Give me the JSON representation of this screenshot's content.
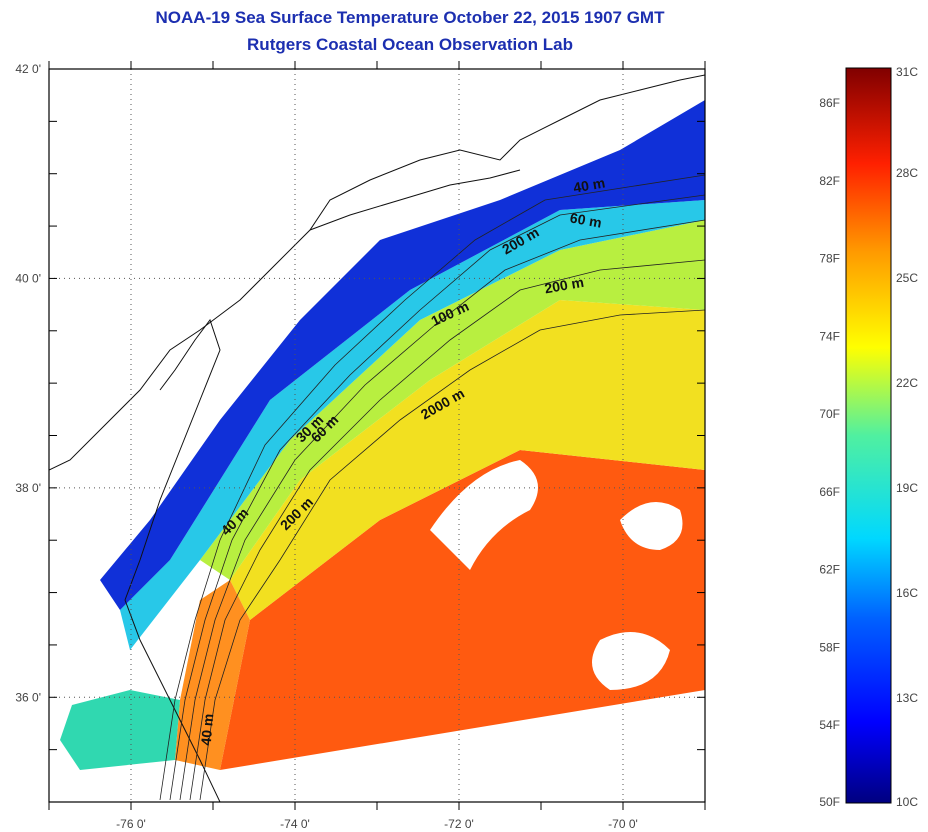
{
  "chart_data": {
    "type": "heatmap",
    "title": "NOAA-19 Sea Surface Temperature October 22, 2015 1907 GMT",
    "subtitle": "Rutgers Coastal Ocean Observation Lab",
    "xlabel": "",
    "ylabel": "",
    "xlim": [
      -77,
      -69
    ],
    "ylim": [
      35,
      42
    ],
    "x_ticks": [
      "-76 0'",
      "-74 0'",
      "-72 0'",
      "-70 0'"
    ],
    "y_ticks": [
      "36 0'",
      "38 0'",
      "40 0'",
      "42 0'"
    ],
    "grid": true,
    "colorbar": {
      "range_c": [
        10,
        31
      ],
      "celsius_labels": [
        "10C",
        "13C",
        "16C",
        "19C",
        "22C",
        "25C",
        "28C",
        "31C"
      ],
      "fahrenheit_labels": [
        "50F",
        "54F",
        "58F",
        "62F",
        "66F",
        "70F",
        "74F",
        "78F",
        "82F",
        "86F"
      ]
    },
    "contour_labels": [
      "200 m",
      "2000 m",
      "200 m",
      "60 m",
      "40 m",
      "100 m",
      "200 m",
      "40 m",
      "60 m",
      "30 m",
      "40 m"
    ]
  }
}
